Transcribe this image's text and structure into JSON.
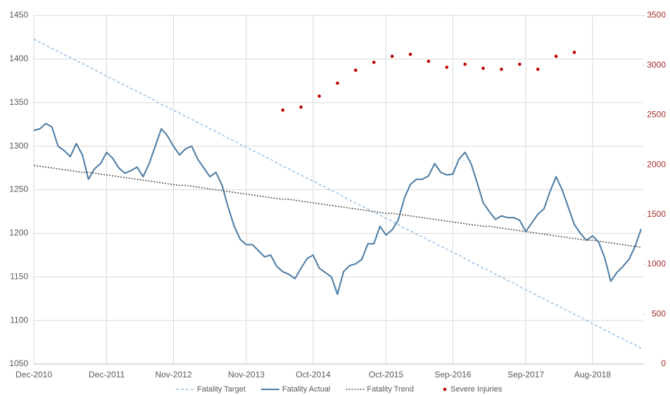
{
  "chart_data": {
    "type": "line",
    "categories": [
      "Dec-2010",
      null,
      null,
      null,
      null,
      null,
      null,
      null,
      null,
      null,
      null,
      null,
      "Dec-2011",
      null,
      null,
      null,
      null,
      null,
      null,
      null,
      null,
      null,
      null,
      "Nov-2012",
      null,
      null,
      null,
      null,
      null,
      null,
      null,
      null,
      null,
      null,
      null,
      "Nov-2013",
      null,
      null,
      null,
      null,
      null,
      null,
      null,
      null,
      null,
      null,
      "Oct-2014",
      null,
      null,
      null,
      null,
      null,
      null,
      null,
      null,
      null,
      null,
      null,
      "Oct-2015",
      null,
      null,
      null,
      null,
      null,
      null,
      null,
      null,
      null,
      null,
      "Sep-2016",
      null,
      null,
      null,
      null,
      null,
      null,
      null,
      null,
      null,
      null,
      null,
      "Sep-2017",
      null,
      null,
      null,
      null,
      null,
      null,
      null,
      null,
      null,
      null,
      "Aug-2018",
      null,
      null,
      null,
      null,
      null,
      null,
      null,
      null
    ],
    "ylim": [
      1050,
      1450
    ],
    "yticks": [
      1050,
      1100,
      1150,
      1200,
      1250,
      1300,
      1350,
      1400,
      1450
    ],
    "y2lim": [
      0,
      3500
    ],
    "y2ticks": [
      0,
      500,
      1000,
      1500,
      2000,
      2500,
      3000,
      3500
    ],
    "grid": true,
    "legend": "bottom",
    "series": [
      {
        "name": "Fatality Target",
        "color": "#9dc3e6",
        "dash": "dashed",
        "values": [
          1423,
          1419,
          1416,
          1412,
          1409,
          1405,
          1402,
          1398,
          1395,
          1391,
          1388,
          1384,
          1380,
          1377,
          1373,
          1370,
          1366,
          1363,
          1359,
          1356,
          1352,
          1348,
          1345,
          1341,
          1338,
          1334,
          1331,
          1327,
          1324,
          1320,
          1317,
          1313,
          1309,
          1306,
          1302,
          1299,
          1295,
          1292,
          1288,
          1285,
          1281,
          1277,
          1274,
          1270,
          1267,
          1263,
          1260,
          1256,
          1253,
          1249,
          1246,
          1242,
          1238,
          1235,
          1231,
          1228,
          1224,
          1221,
          1217,
          1214,
          1210,
          1206,
          1203,
          1199,
          1196,
          1192,
          1189,
          1185,
          1182,
          1178,
          1175,
          1171,
          1167,
          1164,
          1160,
          1157,
          1153,
          1150,
          1146,
          1143,
          1139,
          1135,
          1132,
          1128,
          1125,
          1121,
          1118,
          1114,
          1111,
          1107,
          1104,
          1100,
          1096,
          1093,
          1089,
          1086,
          1082,
          1079,
          1075,
          1072,
          1068
        ]
      },
      {
        "name": "Fatality Actual",
        "color": "#4a7aa3",
        "dash": "solid",
        "values": [
          1318,
          1320,
          1326,
          1322,
          1300,
          1295,
          1288,
          1303,
          1290,
          1262,
          1274,
          1280,
          1293,
          1286,
          1275,
          1269,
          1272,
          1276,
          1265,
          1280,
          1300,
          1320,
          1312,
          1300,
          1290,
          1297,
          1300,
          1285,
          1275,
          1265,
          1270,
          1255,
          1230,
          1208,
          1193,
          1187,
          1187,
          1180,
          1173,
          1175,
          1162,
          1156,
          1153,
          1148,
          1160,
          1171,
          1175,
          1160,
          1155,
          1150,
          1130,
          1156,
          1163,
          1165,
          1170,
          1188,
          1188,
          1208,
          1198,
          1204,
          1215,
          1240,
          1256,
          1262,
          1262,
          1266,
          1280,
          1270,
          1267,
          1268,
          1285,
          1293,
          1280,
          1258,
          1235,
          1225,
          1216,
          1220,
          1218,
          1218,
          1215,
          1202,
          1212,
          1222,
          1228,
          1248,
          1265,
          1250,
          1230,
          1210,
          1200,
          1192,
          1197,
          1190,
          1172,
          1145,
          1155,
          1162,
          1170,
          1185,
          1205
        ]
      },
      {
        "name": "Fatality Trend",
        "color": "#595959",
        "dash": "dotted",
        "values": [
          1278,
          1277,
          1276,
          1275,
          1274,
          1273,
          1272,
          1271,
          1270,
          1270,
          1269,
          1268,
          1267,
          1266,
          1265,
          1264,
          1263,
          1262,
          1261,
          1260,
          1259,
          1258,
          1257,
          1256,
          1255,
          1255,
          1254,
          1253,
          1252,
          1251,
          1250,
          1249,
          1248,
          1247,
          1246,
          1245,
          1244,
          1243,
          1242,
          1241,
          1240,
          1239,
          1239,
          1238,
          1237,
          1236,
          1235,
          1234,
          1233,
          1232,
          1231,
          1230,
          1229,
          1228,
          1227,
          1226,
          1225,
          1224,
          1223,
          1223,
          1222,
          1221,
          1220,
          1219,
          1218,
          1217,
          1216,
          1215,
          1214,
          1213,
          1212,
          1211,
          1210,
          1209,
          1208,
          1208,
          1207,
          1206,
          1205,
          1204,
          1203,
          1202,
          1201,
          1200,
          1199,
          1198,
          1197,
          1196,
          1195,
          1194,
          1193,
          1192,
          1192,
          1191,
          1190,
          1189,
          1188,
          1187,
          1186,
          1185,
          1184
        ]
      },
      {
        "name": "Severe Injuries",
        "color": "#c00000",
        "dash": "none",
        "axis": "y2",
        "values": [
          null,
          null,
          null,
          null,
          null,
          null,
          null,
          null,
          null,
          null,
          null,
          null,
          null,
          null,
          null,
          null,
          null,
          null,
          null,
          null,
          null,
          null,
          null,
          null,
          null,
          null,
          null,
          null,
          null,
          null,
          null,
          null,
          null,
          null,
          null,
          null,
          null,
          null,
          null,
          null,
          null,
          2550,
          null,
          null,
          2580,
          null,
          null,
          2690,
          null,
          null,
          2820,
          null,
          null,
          2950,
          null,
          null,
          3030,
          null,
          null,
          3090,
          null,
          null,
          3110,
          null,
          null,
          3040,
          null,
          null,
          2980,
          null,
          null,
          3010,
          null,
          null,
          2970,
          null,
          null,
          2960,
          null,
          null,
          3010,
          null,
          null,
          2960,
          null,
          null,
          3090,
          null,
          null,
          3130,
          null,
          null,
          null,
          null,
          null,
          null,
          null,
          null,
          null,
          null,
          null
        ]
      }
    ]
  }
}
